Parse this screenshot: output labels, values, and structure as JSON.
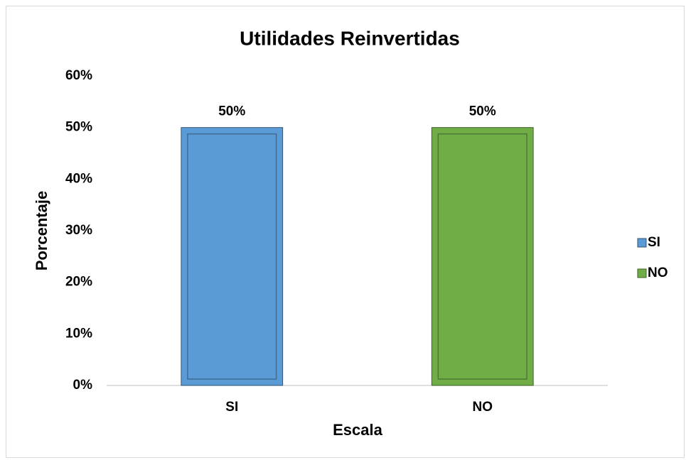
{
  "chart_data": {
    "type": "bar",
    "title": "Utilidades Reinvertidas",
    "x_label": "Escala",
    "y_label": "Porcentaje",
    "categories": [
      "SI",
      "NO"
    ],
    "values": [
      50,
      50
    ],
    "value_labels": [
      "50%",
      "50%"
    ],
    "colors": [
      "#5b9bd5",
      "#70ad47"
    ],
    "ylim": [
      0,
      60
    ],
    "yticks": [
      {
        "value": 0,
        "label": "0%"
      },
      {
        "value": 10,
        "label": "10%"
      },
      {
        "value": 20,
        "label": "20%"
      },
      {
        "value": 30,
        "label": "30%"
      },
      {
        "value": 40,
        "label": "40%"
      },
      {
        "value": 50,
        "label": "50%"
      },
      {
        "value": 60,
        "label": "60%"
      }
    ],
    "grid": false,
    "legend": "right"
  }
}
